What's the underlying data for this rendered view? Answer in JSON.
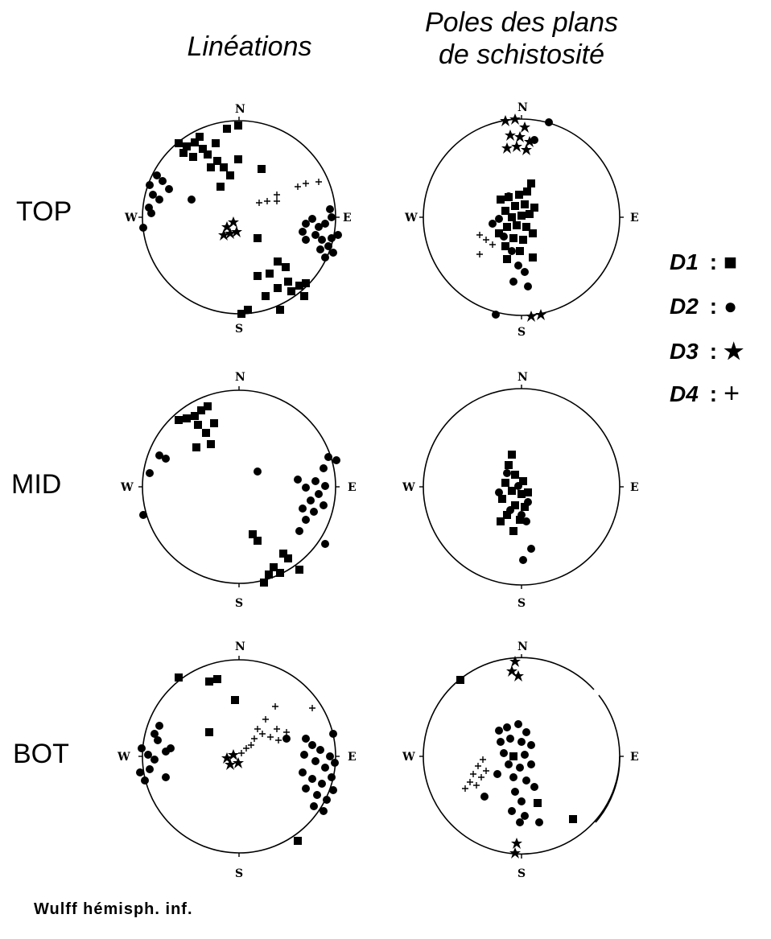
{
  "columns": {
    "lineations": "Linéations",
    "poles_line1": "Poles des plans",
    "poles_line2": "de schistosité"
  },
  "rows": [
    "TOP",
    "MID",
    "BOT"
  ],
  "directions": {
    "n": "N",
    "s": "S",
    "e": "E",
    "w": "W"
  },
  "legend": [
    {
      "label": "D1",
      "symbol": "square-icon",
      "glyph": "■"
    },
    {
      "label": "D2",
      "symbol": "circle-icon",
      "glyph": "●"
    },
    {
      "label": "D3",
      "symbol": "star-icon",
      "glyph": "★"
    },
    {
      "label": "D4",
      "symbol": "plus-icon",
      "glyph": "+"
    }
  ],
  "footer": "Wulff hémisph. inf.",
  "colors": {
    "ink": "#000000",
    "background": "#ffffff"
  }
}
